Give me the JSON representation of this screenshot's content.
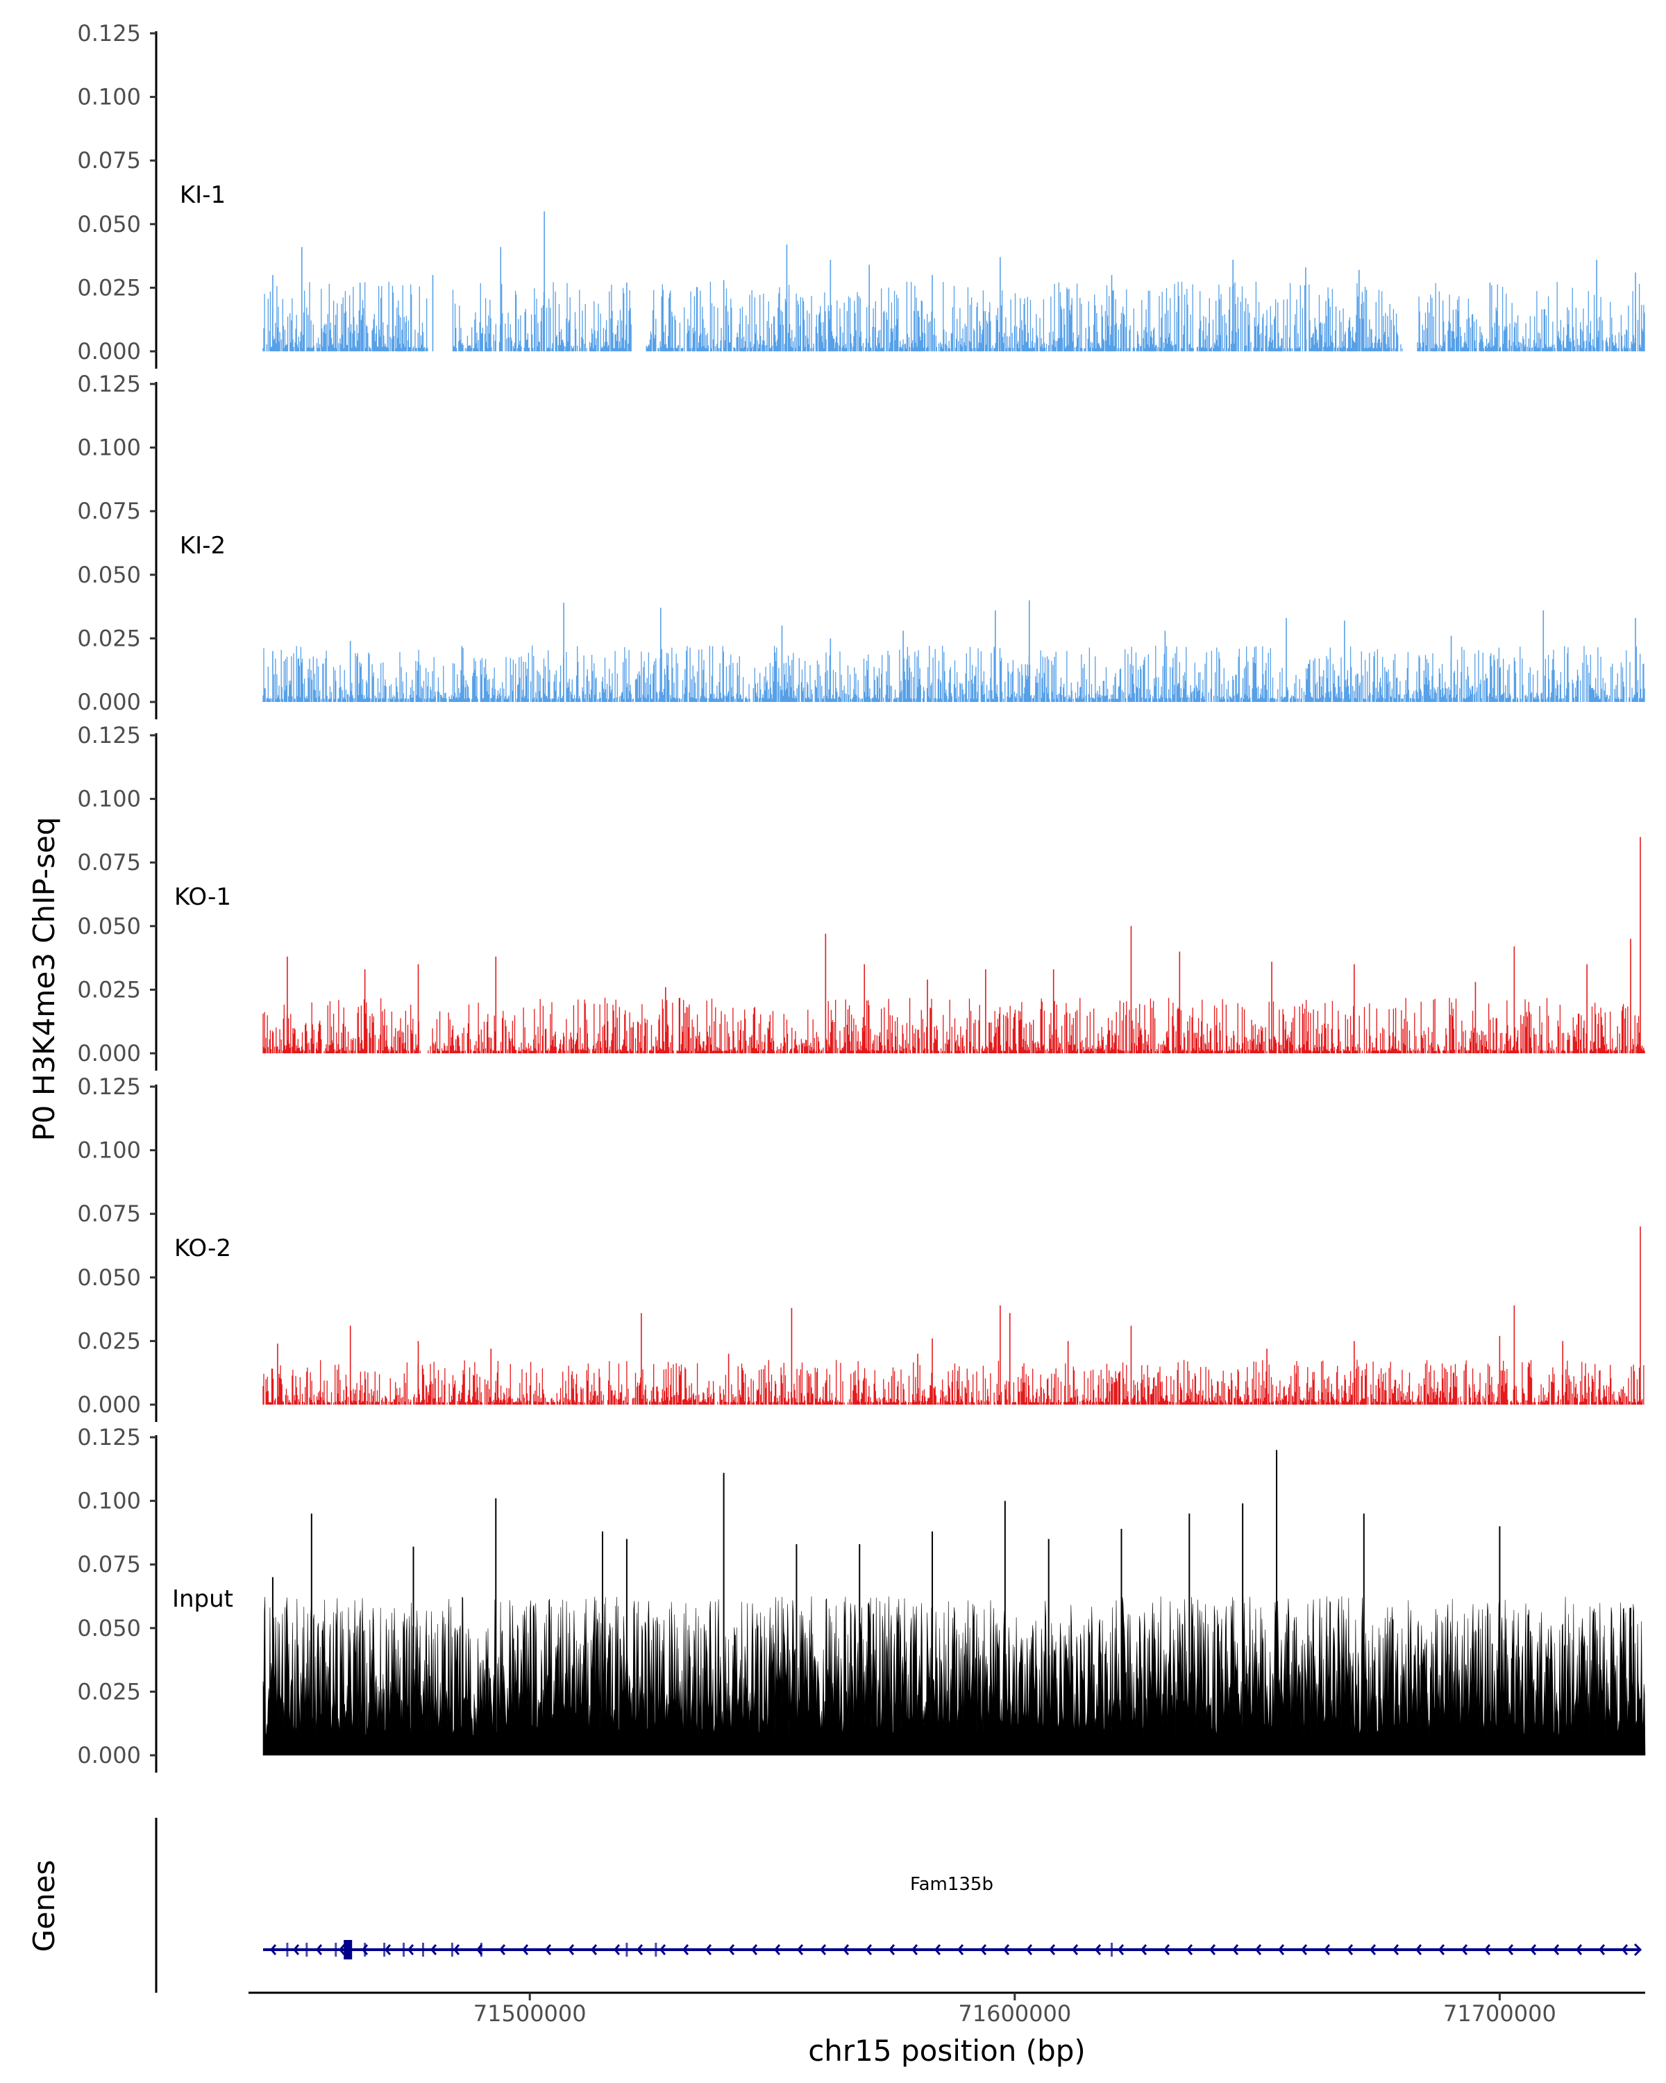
{
  "chart_data": {
    "type": "area",
    "title": "",
    "ylabel": "P0 H3K4me3 ChIP-seq",
    "xlabel": "chr15 position (bp)",
    "genes_label": "Genes",
    "xlim": [
      71442000,
      71730000
    ],
    "data_range": [
      71445000,
      71730000
    ],
    "x_ticks": [
      71500000,
      71600000,
      71700000
    ],
    "x_tick_labels": [
      "71500000",
      "71600000",
      "71700000"
    ],
    "ylim": [
      0,
      0.125
    ],
    "y_ticks": [
      0,
      0.025,
      0.05,
      0.075,
      0.1,
      0.125
    ],
    "y_tick_labels": [
      "0.000",
      "0.025",
      "0.050",
      "0.075",
      "0.100",
      "0.125"
    ],
    "tracks": [
      {
        "name": "KI-1",
        "color": "#56A0E8",
        "style": "spikes",
        "base": 0.004,
        "typical_max": 0.025,
        "peaks": [
          {
            "x": 71447000,
            "y": 0.03
          },
          {
            "x": 71453000,
            "y": 0.041
          },
          {
            "x": 71465000,
            "y": 0.027
          },
          {
            "x": 71480000,
            "y": 0.03
          },
          {
            "x": 71494000,
            "y": 0.041
          },
          {
            "x": 71503000,
            "y": 0.055
          },
          {
            "x": 71520000,
            "y": 0.027
          },
          {
            "x": 71540000,
            "y": 0.028
          },
          {
            "x": 71553000,
            "y": 0.042
          },
          {
            "x": 71562000,
            "y": 0.036
          },
          {
            "x": 71570000,
            "y": 0.034
          },
          {
            "x": 71583000,
            "y": 0.03
          },
          {
            "x": 71597000,
            "y": 0.037
          },
          {
            "x": 71620000,
            "y": 0.03
          },
          {
            "x": 71645000,
            "y": 0.036
          },
          {
            "x": 71660000,
            "y": 0.033
          },
          {
            "x": 71671000,
            "y": 0.032
          },
          {
            "x": 71698000,
            "y": 0.027
          },
          {
            "x": 71720000,
            "y": 0.036
          },
          {
            "x": 71728000,
            "y": 0.031
          }
        ],
        "gaps": [
          [
            71479000,
            71484000
          ],
          [
            71521000,
            71524000
          ],
          [
            71680000,
            71683000
          ]
        ]
      },
      {
        "name": "KI-2",
        "color": "#56A0E8",
        "style": "spikes",
        "base": 0.004,
        "typical_max": 0.02,
        "peaks": [
          {
            "x": 71447000,
            "y": 0.02
          },
          {
            "x": 71463000,
            "y": 0.024
          },
          {
            "x": 71486000,
            "y": 0.022
          },
          {
            "x": 71507000,
            "y": 0.039
          },
          {
            "x": 71527000,
            "y": 0.037
          },
          {
            "x": 71552000,
            "y": 0.03
          },
          {
            "x": 71562000,
            "y": 0.025
          },
          {
            "x": 71577000,
            "y": 0.028
          },
          {
            "x": 71596000,
            "y": 0.036
          },
          {
            "x": 71603000,
            "y": 0.04
          },
          {
            "x": 71631000,
            "y": 0.028
          },
          {
            "x": 71656000,
            "y": 0.033
          },
          {
            "x": 71668000,
            "y": 0.032
          },
          {
            "x": 71690000,
            "y": 0.026
          },
          {
            "x": 71709000,
            "y": 0.036
          },
          {
            "x": 71728000,
            "y": 0.033
          }
        ],
        "gaps": []
      },
      {
        "name": "KO-1",
        "color": "#E41A1C",
        "style": "spikes",
        "base": 0.003,
        "typical_max": 0.02,
        "peaks": [
          {
            "x": 71450000,
            "y": 0.038
          },
          {
            "x": 71466000,
            "y": 0.033
          },
          {
            "x": 71477000,
            "y": 0.035
          },
          {
            "x": 71493000,
            "y": 0.038
          },
          {
            "x": 71528000,
            "y": 0.026
          },
          {
            "x": 71561000,
            "y": 0.047
          },
          {
            "x": 71569000,
            "y": 0.035
          },
          {
            "x": 71582000,
            "y": 0.029
          },
          {
            "x": 71594000,
            "y": 0.033
          },
          {
            "x": 71608000,
            "y": 0.033
          },
          {
            "x": 71624000,
            "y": 0.05
          },
          {
            "x": 71634000,
            "y": 0.04
          },
          {
            "x": 71653000,
            "y": 0.036
          },
          {
            "x": 71670000,
            "y": 0.035
          },
          {
            "x": 71695000,
            "y": 0.028
          },
          {
            "x": 71703000,
            "y": 0.042
          },
          {
            "x": 71718000,
            "y": 0.035
          },
          {
            "x": 71727000,
            "y": 0.045
          },
          {
            "x": 71729000,
            "y": 0.085
          }
        ],
        "gaps": [
          [
            71477500,
            71478800
          ]
        ]
      },
      {
        "name": "KO-2",
        "color": "#E41A1C",
        "style": "spikes",
        "base": 0.003,
        "typical_max": 0.016,
        "peaks": [
          {
            "x": 71448000,
            "y": 0.024
          },
          {
            "x": 71463000,
            "y": 0.031
          },
          {
            "x": 71477000,
            "y": 0.025
          },
          {
            "x": 71492000,
            "y": 0.022
          },
          {
            "x": 71523000,
            "y": 0.036
          },
          {
            "x": 71541000,
            "y": 0.02
          },
          {
            "x": 71554000,
            "y": 0.038
          },
          {
            "x": 71580000,
            "y": 0.02
          },
          {
            "x": 71583000,
            "y": 0.026
          },
          {
            "x": 71597000,
            "y": 0.039
          },
          {
            "x": 71599000,
            "y": 0.036
          },
          {
            "x": 71611000,
            "y": 0.025
          },
          {
            "x": 71624000,
            "y": 0.031
          },
          {
            "x": 71652000,
            "y": 0.022
          },
          {
            "x": 71670000,
            "y": 0.025
          },
          {
            "x": 71700000,
            "y": 0.027
          },
          {
            "x": 71703000,
            "y": 0.039
          },
          {
            "x": 71713000,
            "y": 0.025
          },
          {
            "x": 71729000,
            "y": 0.07
          }
        ],
        "gaps": []
      },
      {
        "name": "Input",
        "color": "#000000",
        "style": "filled",
        "base": 0.015,
        "typical_max": 0.055,
        "peaks": [
          {
            "x": 71447000,
            "y": 0.07
          },
          {
            "x": 71455000,
            "y": 0.095
          },
          {
            "x": 71476000,
            "y": 0.082
          },
          {
            "x": 71493000,
            "y": 0.101
          },
          {
            "x": 71515000,
            "y": 0.088
          },
          {
            "x": 71520000,
            "y": 0.085
          },
          {
            "x": 71540000,
            "y": 0.111
          },
          {
            "x": 71555000,
            "y": 0.083
          },
          {
            "x": 71568000,
            "y": 0.083
          },
          {
            "x": 71583000,
            "y": 0.088
          },
          {
            "x": 71598000,
            "y": 0.1
          },
          {
            "x": 71607000,
            "y": 0.085
          },
          {
            "x": 71622000,
            "y": 0.089
          },
          {
            "x": 71636000,
            "y": 0.095
          },
          {
            "x": 71647000,
            "y": 0.099
          },
          {
            "x": 71654000,
            "y": 0.12
          },
          {
            "x": 71672000,
            "y": 0.095
          },
          {
            "x": 71700000,
            "y": 0.09
          },
          {
            "x": 71727000,
            "y": 0.058
          }
        ],
        "gaps": []
      }
    ],
    "genes": [
      {
        "name": "Fam135b",
        "strand": "-",
        "start": 71445000,
        "end": 71729000,
        "color": "#00008B",
        "exons": [
          71450000,
          71454000,
          71460000,
          71462000,
          71466000,
          71470000,
          71474000,
          71478000,
          71484000,
          71490000,
          71520000,
          71526000,
          71620000
        ]
      }
    ]
  }
}
